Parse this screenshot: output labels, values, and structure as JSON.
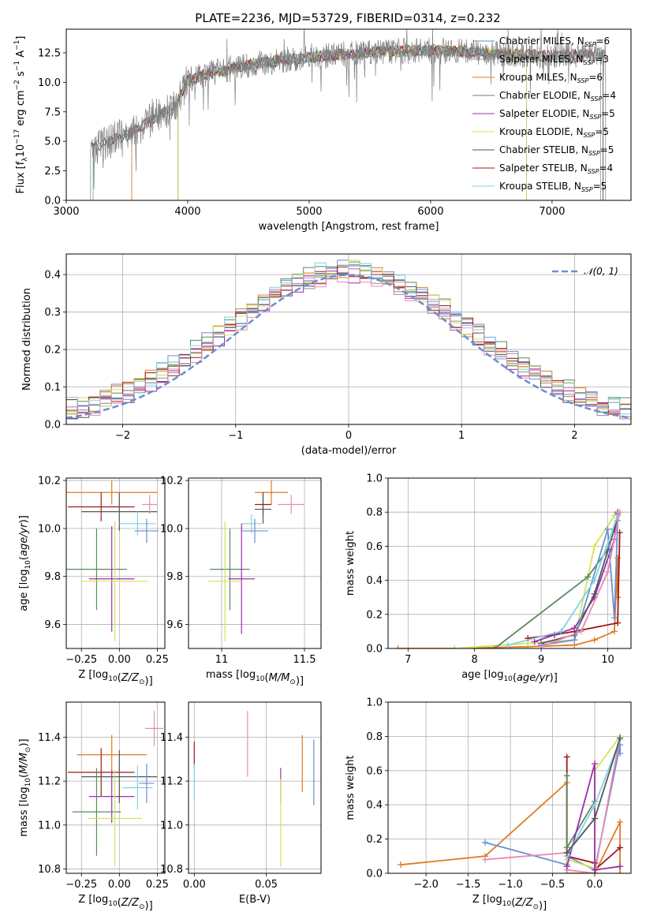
{
  "figure": {
    "title": "PLATE=2236, MJD=53729, FIBERID=0314, z=0.232"
  },
  "colors": {
    "Chabrier MILES": "#6a8fd0",
    "Salpeter MILES": "#909090",
    "Kroupa MILES": "#e07b22",
    "Chabrier ELODIE": "#5b8a5b",
    "Salpeter ELODIE": "#9b2fae",
    "Kroupa ELODIE": "#d4e35a",
    "Chabrier STELIB": "#555555",
    "Salpeter STELIB": "#a01818",
    "Kroupa STELIB": "#7fd3e6",
    "pink": "#e58ab4",
    "gaussian": "#6a8fd0"
  },
  "chart_data": [
    {
      "id": "spectrum",
      "type": "line",
      "xlabel": "wavelength [Angstrom, rest frame]",
      "ylabel": "Flux [f_λ 10^-17 erg cm^-2 s^-1 A^-1]",
      "xlim": [
        3000,
        7650
      ],
      "ylim": [
        0,
        14.5
      ],
      "xticks": [
        3000,
        4000,
        5000,
        6000,
        7000
      ],
      "yticks": [
        0.0,
        2.5,
        5.0,
        7.5,
        10.0,
        12.5
      ],
      "grid": false,
      "legend_position": "top-right",
      "continuum": {
        "x": [
          3200,
          3300,
          3500,
          3700,
          3900,
          4000,
          4200,
          4500,
          4800,
          5200,
          5600,
          6000,
          6300,
          6600,
          7000,
          7400
        ],
        "y": [
          4.3,
          4.8,
          5.6,
          6.8,
          8.0,
          10.2,
          10.8,
          11.5,
          11.9,
          12.3,
          12.6,
          12.7,
          12.6,
          12.4,
          12.2,
          12.4
        ]
      },
      "legend": [
        {
          "name": "Chabrier MILES, N",
          "sub": "SSP",
          "tail": "=6"
        },
        {
          "name": "Salpeter MILES, N",
          "sub": "SSP",
          "tail": "=3"
        },
        {
          "name": "Kroupa MILES, N",
          "sub": "SSP",
          "tail": "=6"
        },
        {
          "name": "Chabrier ELODIE, N",
          "sub": "SSP",
          "tail": "=4"
        },
        {
          "name": "Salpeter ELODIE, N",
          "sub": "SSP",
          "tail": "=5"
        },
        {
          "name": "Kroupa ELODIE, N",
          "sub": "SSP",
          "tail": "=5"
        },
        {
          "name": "Chabrier STELIB, N",
          "sub": "SSP",
          "tail": "=5"
        },
        {
          "name": "Salpeter STELIB, N",
          "sub": "SSP",
          "tail": "=4"
        },
        {
          "name": "Kroupa STELIB, N",
          "sub": "SSP",
          "tail": "=5"
        }
      ],
      "model_ranges": [
        {
          "series": "Chabrier MILES",
          "x": [
            3540,
            7420
          ]
        },
        {
          "series": "Salpeter MILES",
          "x": [
            3200,
            7440
          ]
        },
        {
          "series": "Kroupa MILES",
          "x": [
            3540,
            7420
          ]
        },
        {
          "series": "Chabrier ELODIE",
          "x": [
            3920,
            6790
          ]
        },
        {
          "series": "Salpeter ELODIE",
          "x": [
            3920,
            6790
          ]
        },
        {
          "series": "Kroupa ELODIE",
          "x": [
            3920,
            6790
          ]
        },
        {
          "series": "Chabrier STELIB",
          "x": [
            3220,
            7420
          ]
        },
        {
          "series": "Salpeter STELIB",
          "x": [
            3220,
            7400
          ]
        },
        {
          "series": "Kroupa STELIB",
          "x": [
            3220,
            7400
          ]
        }
      ]
    },
    {
      "id": "residuals",
      "type": "line",
      "xlabel": "(data-model)/error",
      "ylabel": "Normed distribution",
      "xlim": [
        -2.5,
        2.5
      ],
      "ylim": [
        0,
        0.455
      ],
      "xticks": [
        -2,
        -1,
        0,
        1,
        2
      ],
      "xtick_labels": [
        "−2",
        "−1",
        "0",
        "1",
        "2"
      ],
      "yticks": [
        0.0,
        0.1,
        0.2,
        0.3,
        0.4
      ],
      "grid": true,
      "legend_position": "top-right",
      "legend_label": "𝒩(0, 1)",
      "gaussian": {
        "mu": 0,
        "sigma": 1
      },
      "hist_bins": {
        "start": -2.5,
        "width": 0.1,
        "count": 50
      },
      "hist_offsets": [
        0.02,
        -0.015,
        0.01,
        0.025,
        -0.02,
        0.015,
        -0.01,
        0.005,
        0.03,
        -0.025
      ]
    },
    {
      "id": "age-Z",
      "type": "scatter",
      "xlabel": "Z [log10(Z/Z☉)]",
      "ylabel": "age [log10(age/yr)]",
      "xlim": [
        -0.35,
        0.3
      ],
      "ylim": [
        9.5,
        10.21
      ],
      "xticks": [
        -0.25,
        0.0,
        0.25
      ],
      "xtick_labels": [
        "−0.25",
        "0.00",
        "0.25"
      ],
      "yticks": [
        9.6,
        9.8,
        10.0,
        10.2
      ],
      "errorbars": [
        {
          "series": "Kroupa MILES",
          "x": -0.05,
          "y": 10.15,
          "xerr": 0.3,
          "yerr": 0.05
        },
        {
          "series": "Salpeter STELIB",
          "x": -0.12,
          "y": 10.09,
          "xerr": 0.22,
          "yerr": 0.06
        },
        {
          "series": "Chabrier STELIB",
          "x": 0.0,
          "y": 10.07,
          "xerr": 0.25,
          "yerr": 0.08
        },
        {
          "series": "Kroupa STELIB",
          "x": 0.12,
          "y": 10.02,
          "xerr": 0.12,
          "yerr": 0.05
        },
        {
          "series": "pink",
          "x": 0.2,
          "y": 10.1,
          "xerr": 0.05,
          "yerr": 0.04
        },
        {
          "series": "Chabrier MILES",
          "x": 0.18,
          "y": 9.99,
          "xerr": 0.08,
          "yerr": 0.05
        },
        {
          "series": "Chabrier ELODIE",
          "x": -0.15,
          "y": 9.83,
          "xerr": 0.2,
          "yerr": 0.17
        },
        {
          "series": "Salpeter ELODIE",
          "x": -0.05,
          "y": 9.79,
          "xerr": 0.15,
          "yerr": 0.22
        },
        {
          "series": "Kroupa ELODIE",
          "x": -0.03,
          "y": 9.78,
          "xerr": 0.22,
          "yerr": 0.25
        }
      ]
    },
    {
      "id": "age-mass",
      "type": "scatter",
      "xlabel": "mass [log10(M/M☉)]",
      "ylabel": "",
      "xlim": [
        10.8,
        11.6
      ],
      "ylim": [
        9.5,
        10.21
      ],
      "xticks": [
        11.0,
        11.5
      ],
      "yticks": [
        9.6,
        9.8,
        10.0,
        10.2
      ],
      "errorbars": [
        {
          "series": "Kroupa MILES",
          "x": 11.3,
          "y": 10.15,
          "xerr": 0.1,
          "yerr": 0.05
        },
        {
          "series": "Salpeter STELIB",
          "x": 11.25,
          "y": 10.1,
          "xerr": 0.05,
          "yerr": 0.05
        },
        {
          "series": "Chabrier STELIB",
          "x": 11.25,
          "y": 10.08,
          "xerr": 0.05,
          "yerr": 0.06
        },
        {
          "series": "pink",
          "x": 11.42,
          "y": 10.1,
          "xerr": 0.08,
          "yerr": 0.04
        },
        {
          "series": "Kroupa STELIB",
          "x": 11.18,
          "y": 10.02,
          "xerr": 0.06,
          "yerr": 0.04
        },
        {
          "series": "Chabrier MILES",
          "x": 11.2,
          "y": 9.99,
          "xerr": 0.08,
          "yerr": 0.05
        },
        {
          "series": "Chabrier ELODIE",
          "x": 11.05,
          "y": 9.83,
          "xerr": 0.12,
          "yerr": 0.17
        },
        {
          "series": "Salpeter ELODIE",
          "x": 11.12,
          "y": 9.79,
          "xerr": 0.08,
          "yerr": 0.23
        },
        {
          "series": "Kroupa ELODIE",
          "x": 11.02,
          "y": 9.78,
          "xerr": 0.1,
          "yerr": 0.25
        }
      ]
    },
    {
      "id": "massweight-age",
      "type": "line",
      "xlabel": "age [log10(age/yr)]",
      "ylabel": "mass weight",
      "xlim": [
        6.7,
        10.35
      ],
      "ylim": [
        0,
        1.0
      ],
      "xticks": [
        7,
        8,
        9,
        10
      ],
      "yticks": [
        0.0,
        0.2,
        0.4,
        0.6,
        0.8,
        1.0
      ],
      "grid": true,
      "series": [
        {
          "name": "Kroupa MILES",
          "x": [
            6.85,
            7.7,
            8.8,
            9.5,
            9.8,
            10.1,
            10.15,
            10.15
          ],
          "y": [
            0.0,
            0.0,
            0.01,
            0.02,
            0.05,
            0.1,
            0.53,
            0.3
          ]
        },
        {
          "name": "Kroupa ELODIE",
          "x": [
            7.7,
            8.8,
            9.5,
            9.8,
            10.1
          ],
          "y": [
            0.0,
            0.03,
            0.05,
            0.6,
            0.78
          ]
        },
        {
          "name": "Chabrier ELODIE",
          "x": [
            8.3,
            9.7,
            10.0
          ],
          "y": [
            0.0,
            0.42,
            0.58
          ]
        },
        {
          "name": "Salpeter STELIB",
          "x": [
            8.8,
            9.2,
            9.5,
            10.15,
            10.18
          ],
          "y": [
            0.06,
            0.08,
            0.1,
            0.15,
            0.68
          ]
        },
        {
          "name": "Salpeter ELODIE",
          "x": [
            8.9,
            9.5,
            9.8,
            10.1,
            10.15
          ],
          "y": [
            0.04,
            0.12,
            0.3,
            0.64,
            0.8
          ]
        },
        {
          "name": "Chabrier STELIB",
          "x": [
            9.0,
            9.5,
            9.8,
            10.1,
            10.15
          ],
          "y": [
            0.03,
            0.08,
            0.32,
            0.7,
            0.79
          ]
        },
        {
          "name": "Chabrier MILES",
          "x": [
            9.0,
            9.5,
            10.0,
            10.1,
            10.15
          ],
          "y": [
            0.02,
            0.05,
            0.7,
            0.18,
            0.75
          ]
        },
        {
          "name": "Kroupa STELIB",
          "x": [
            8.5,
            9.3,
            9.8,
            10.15
          ],
          "y": [
            0.02,
            0.1,
            0.4,
            0.78
          ]
        },
        {
          "name": "pink",
          "x": [
            9.0,
            9.6,
            10.0,
            10.18
          ],
          "y": [
            0.01,
            0.1,
            0.45,
            0.8
          ]
        }
      ]
    },
    {
      "id": "mass-Z",
      "type": "scatter",
      "xlabel": "Z [log10(Z/Z☉)]",
      "ylabel": "mass [log10(M/M☉)]",
      "xlim": [
        -0.35,
        0.3
      ],
      "ylim": [
        10.78,
        11.56
      ],
      "xticks": [
        -0.25,
        0.0,
        0.25
      ],
      "xtick_labels": [
        "−0.25",
        "0.00",
        "0.25"
      ],
      "yticks": [
        10.8,
        11.0,
        11.2,
        11.4
      ],
      "errorbars": [
        {
          "series": "pink",
          "x": 0.23,
          "y": 11.44,
          "xerr": 0.06,
          "yerr": 0.08
        },
        {
          "series": "Kroupa MILES",
          "x": -0.05,
          "y": 11.32,
          "xerr": 0.23,
          "yerr": 0.09
        },
        {
          "series": "Salpeter STELIB",
          "x": -0.12,
          "y": 11.24,
          "xerr": 0.22,
          "yerr": 0.11
        },
        {
          "series": "Chabrier STELIB",
          "x": 0.0,
          "y": 11.22,
          "xerr": 0.25,
          "yerr": 0.12
        },
        {
          "series": "Kroupa STELIB",
          "x": 0.12,
          "y": 11.17,
          "xerr": 0.1,
          "yerr": 0.1
        },
        {
          "series": "Chabrier MILES",
          "x": 0.18,
          "y": 11.19,
          "xerr": 0.05,
          "yerr": 0.09
        },
        {
          "series": "Salpeter ELODIE",
          "x": -0.05,
          "y": 11.13,
          "xerr": 0.15,
          "yerr": 0.12
        },
        {
          "series": "Chabrier ELODIE",
          "x": -0.15,
          "y": 11.06,
          "xerr": 0.16,
          "yerr": 0.2
        },
        {
          "series": "Kroupa ELODIE",
          "x": -0.03,
          "y": 11.03,
          "xerr": 0.18,
          "yerr": 0.22
        }
      ]
    },
    {
      "id": "mass-EBV",
      "type": "scatter",
      "xlabel": "E(B-V)",
      "ylabel": "",
      "xlim": [
        -0.004,
        0.088
      ],
      "ylim": [
        10.78,
        11.56
      ],
      "xticks": [
        0.0,
        0.05
      ],
      "xtick_labels": [
        "0.00",
        "0.05"
      ],
      "yticks": [
        10.8,
        11.0,
        11.2,
        11.4
      ],
      "errorbars": [
        {
          "series": "Salpeter STELIB",
          "x": 0.0,
          "y": 11.32,
          "xerr": 0,
          "yerr": 0.06
        },
        {
          "series": "Kroupa STELIB",
          "x": 0.0,
          "y": 11.2,
          "xerr": 0,
          "yerr": 0.08
        },
        {
          "series": "pink",
          "x": 0.037,
          "y": 11.37,
          "xerr": 0,
          "yerr": 0.15
        },
        {
          "series": "Salpeter ELODIE",
          "x": 0.06,
          "y": 11.18,
          "xerr": 0,
          "yerr": 0.08
        },
        {
          "series": "Kroupa ELODIE",
          "x": 0.06,
          "y": 11.01,
          "xerr": 0,
          "yerr": 0.2
        },
        {
          "series": "Kroupa MILES",
          "x": 0.075,
          "y": 11.28,
          "xerr": 0,
          "yerr": 0.13
        },
        {
          "series": "Chabrier MILES",
          "x": 0.083,
          "y": 11.24,
          "xerr": 0,
          "yerr": 0.15
        }
      ]
    },
    {
      "id": "massweight-Z",
      "type": "line",
      "xlabel": "Z [log10(Z/Z☉)]",
      "ylabel": "mass weight",
      "xlim": [
        -2.45,
        0.43
      ],
      "ylim": [
        0,
        1.0
      ],
      "xticks": [
        -2.0,
        -1.5,
        -1.0,
        -0.5,
        0.0
      ],
      "xtick_labels": [
        "−2.0",
        "−1.5",
        "−1.0",
        "−0.5",
        "0.0"
      ],
      "yticks": [
        0.0,
        0.2,
        0.4,
        0.6,
        0.8,
        1.0
      ],
      "grid": true,
      "series": [
        {
          "name": "Kroupa MILES",
          "x": [
            -2.3,
            -1.3,
            -0.33,
            -0.33,
            0.0,
            0.3,
            0.3
          ],
          "y": [
            0.05,
            0.1,
            0.53,
            0.0,
            0.0,
            0.3,
            0.0
          ]
        },
        {
          "name": "Chabrier MILES",
          "x": [
            -1.3,
            -0.33,
            -0.33,
            0.0,
            0.3,
            0.3
          ],
          "y": [
            0.18,
            0.05,
            0.1,
            0.02,
            0.75,
            0.7
          ]
        },
        {
          "name": "pink",
          "x": [
            -1.3,
            -0.33,
            -0.33,
            0.0,
            0.3
          ],
          "y": [
            0.08,
            0.12,
            0.02,
            0.0,
            0.8
          ]
        },
        {
          "name": "Salpeter STELIB",
          "x": [
            -0.33,
            -0.33,
            0.0,
            0.0,
            0.3
          ],
          "y": [
            0.68,
            0.1,
            0.06,
            0.02,
            0.15
          ]
        },
        {
          "name": "Chabrier ELODIE",
          "x": [
            -0.33,
            -0.33,
            0.0,
            0.0
          ],
          "y": [
            0.57,
            0.15,
            0.42,
            0.0
          ]
        },
        {
          "name": "Kroupa ELODIE",
          "x": [
            -0.33,
            0.0,
            0.0,
            0.3
          ],
          "y": [
            0.08,
            0.03,
            0.6,
            0.8
          ]
        },
        {
          "name": "Salpeter ELODIE",
          "x": [
            -0.33,
            0.0,
            0.0,
            0.3
          ],
          "y": [
            0.04,
            0.64,
            0.02,
            0.04
          ]
        },
        {
          "name": "Kroupa STELIB",
          "x": [
            -0.33,
            0.0,
            0.3
          ],
          "y": [
            0.1,
            0.4,
            0.78
          ]
        },
        {
          "name": "Chabrier STELIB",
          "x": [
            -0.33,
            0.0,
            0.3
          ],
          "y": [
            0.12,
            0.32,
            0.79
          ]
        }
      ]
    }
  ]
}
